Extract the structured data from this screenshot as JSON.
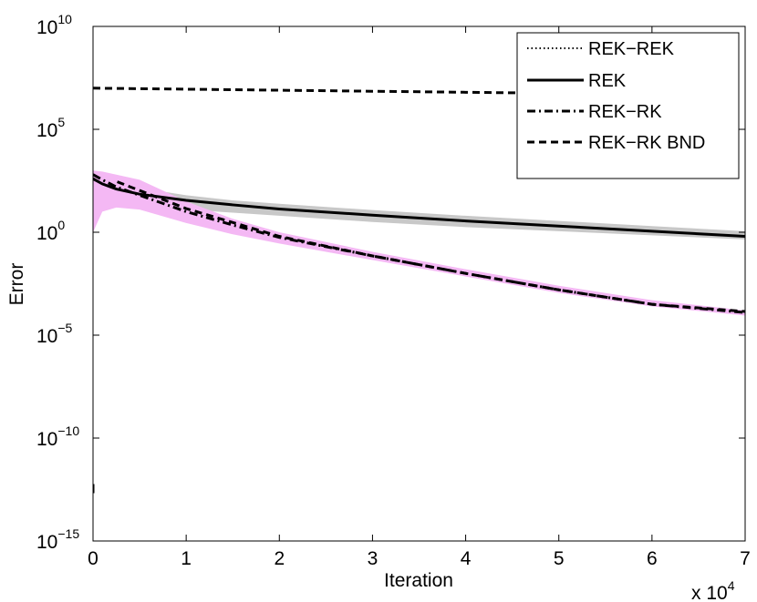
{
  "chart_data": {
    "type": "line",
    "xlabel": "Iteration",
    "ylabel": "Error",
    "x_multiplier_label": "x 10",
    "x_multiplier_exp": "4",
    "xlim": [
      0,
      70000
    ],
    "ylim_log10": [
      -15,
      10
    ],
    "yscale": "log",
    "grid": false,
    "legend_position": "top-right",
    "x_ticks": [
      {
        "value": 0,
        "label": "0"
      },
      {
        "value": 10000,
        "label": "1"
      },
      {
        "value": 20000,
        "label": "2"
      },
      {
        "value": 30000,
        "label": "3"
      },
      {
        "value": 40000,
        "label": "4"
      },
      {
        "value": 50000,
        "label": "5"
      },
      {
        "value": 60000,
        "label": "6"
      },
      {
        "value": 70000,
        "label": "7"
      }
    ],
    "y_ticks": [
      {
        "log10": 10,
        "base": "10",
        "exp": "10"
      },
      {
        "log10": 5,
        "base": "10",
        "exp": "5"
      },
      {
        "log10": 0,
        "base": "10",
        "exp": "0"
      },
      {
        "log10": -5,
        "base": "10",
        "exp": "−5"
      },
      {
        "log10": -10,
        "base": "10",
        "exp": "−10"
      },
      {
        "log10": -15,
        "base": "10",
        "exp": "−15"
      }
    ],
    "series": [
      {
        "name": "REK−REK",
        "style": "dotted",
        "color": "#000000",
        "x": [
          0,
          70000
        ],
        "log10_y": [
          0.5,
          0.5
        ],
        "visible": false
      },
      {
        "name": "REK",
        "style": "solid",
        "color": "#000000",
        "x": [
          0,
          1000,
          2500,
          5000,
          10000,
          15000,
          20000,
          30000,
          40000,
          50000,
          60000,
          70000
        ],
        "log10_y": [
          2.6,
          2.35,
          2.1,
          1.85,
          1.55,
          1.33,
          1.13,
          0.83,
          0.55,
          0.3,
          0.05,
          -0.2
        ],
        "band_color": "#c8c8c8",
        "band_upper_log10": [
          2.9,
          2.5,
          2.3,
          2.15,
          1.8,
          1.55,
          1.38,
          1.08,
          0.8,
          0.55,
          0.3,
          0.05
        ],
        "band_lower_log10": [
          1.2,
          1.3,
          1.25,
          1.2,
          1.1,
          0.95,
          0.8,
          0.5,
          0.25,
          0.05,
          -0.15,
          -0.35
        ]
      },
      {
        "name": "REK−RK",
        "style": "dashdot",
        "color": "#000000",
        "x": [
          0,
          1000,
          2500,
          5000,
          10000,
          15000,
          20000,
          30000,
          40000,
          50000,
          60000,
          70000
        ],
        "log10_y": [
          2.8,
          2.55,
          2.2,
          1.8,
          1.0,
          0.35,
          -0.25,
          -1.15,
          -2.0,
          -2.8,
          -3.5,
          -3.9
        ],
        "band_color": "#f4b8f4",
        "band_upper_log10": [
          3.0,
          2.95,
          2.8,
          2.55,
          1.5,
          0.65,
          0.0,
          -0.95,
          -1.8,
          -2.6,
          -3.3,
          -3.8
        ],
        "band_lower_log10": [
          0.0,
          1.0,
          1.2,
          1.1,
          0.45,
          -0.1,
          -0.55,
          -1.35,
          -2.15,
          -2.95,
          -3.6,
          -4.05
        ]
      },
      {
        "name": "REK−RK BND",
        "style": "dashed",
        "color": "#000000",
        "x_segments": [
          {
            "x": [
              0,
              10000,
              20000,
              30000,
              40000,
              50000,
              60000,
              66000
            ],
            "log10_y": [
              7.0,
              6.95,
              6.9,
              6.85,
              6.8,
              6.75,
              6.7,
              6.67
            ]
          },
          {
            "x": [
              2600,
              10000,
              20000,
              30000,
              40000,
              50000,
              60000,
              70000
            ],
            "log10_y": [
              2.45,
              1.15,
              -0.2,
              -1.15,
              -2.0,
              -2.8,
              -3.5,
              -3.85
            ]
          }
        ]
      }
    ],
    "stray_mark": {
      "x": 0,
      "log10_y": -12.5
    }
  }
}
